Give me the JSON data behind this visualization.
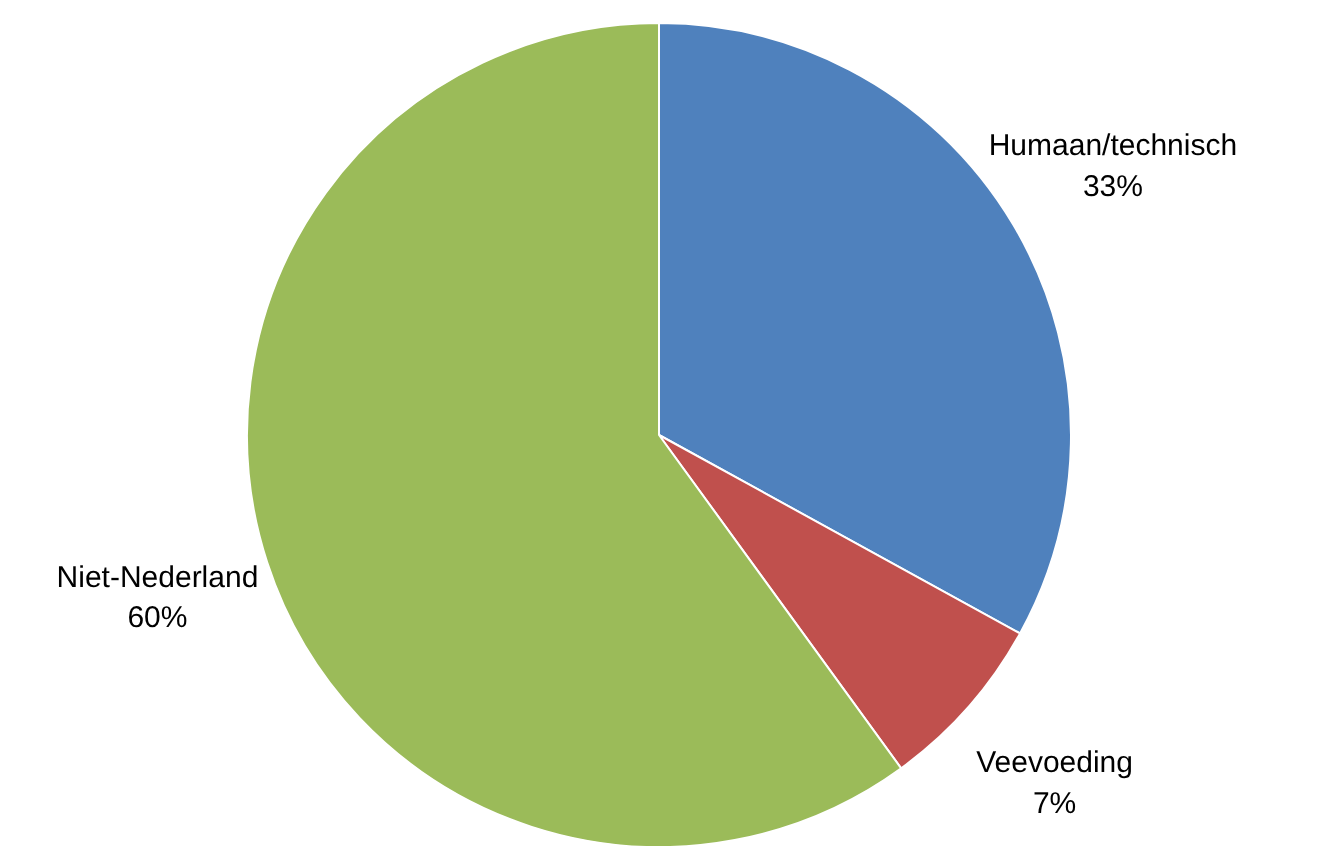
{
  "chart_data": {
    "type": "pie",
    "categories": [
      "Humaan/technisch",
      "Veevoeding",
      "Niet-Nederland"
    ],
    "values": [
      33,
      7,
      60
    ],
    "colors": [
      "#4f81bd",
      "#c0504d",
      "#9bbb59"
    ],
    "value_labels": [
      "33%",
      "7%",
      "60%"
    ]
  }
}
